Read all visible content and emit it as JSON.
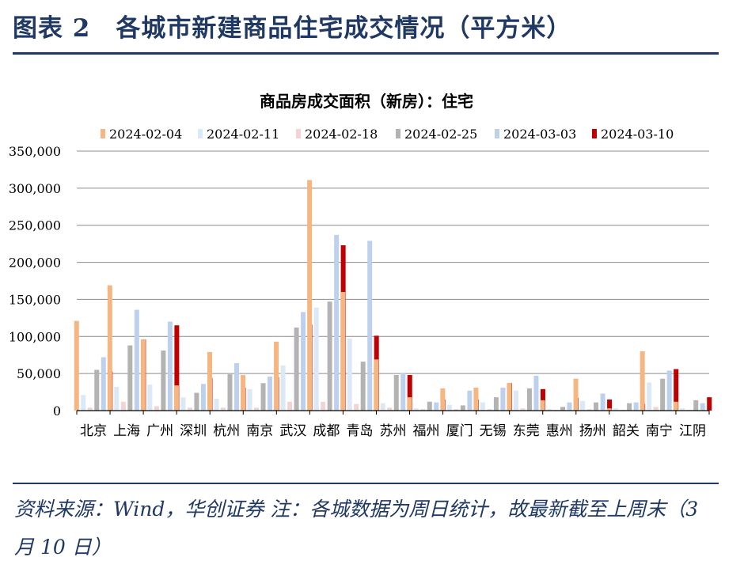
{
  "figure": {
    "title": "图表 2　各城市新建商品住宅成交情况（平方米）",
    "source_note": "资料来源：Wind，华创证券 注：各城数据为周日统计，故最新截至上周末（3 月 10 日）"
  },
  "chart_data": {
    "type": "bar",
    "title": "商品房成交面积（新房）：住宅",
    "xlabel": "",
    "ylabel": "",
    "ylim": [
      0,
      350000
    ],
    "yticks": [
      0,
      50000,
      100000,
      150000,
      200000,
      250000,
      300000,
      350000
    ],
    "ytick_labels": [
      "0",
      "50,000",
      "100,000",
      "150,000",
      "200,000",
      "250,000",
      "300,000",
      "350,000"
    ],
    "grid": true,
    "legend_position": "top",
    "categories": [
      "北京",
      "上海",
      "广州",
      "深圳",
      "杭州",
      "南京",
      "武汉",
      "成都",
      "青岛",
      "苏州",
      "福州",
      "厦门",
      "无锡",
      "东莞",
      "惠州",
      "扬州",
      "韶关",
      "南宁",
      "江阴"
    ],
    "series": [
      {
        "name": "2024-02-04",
        "color": "#f5b682",
        "values": [
          121000,
          169000,
          96000,
          34000,
          79000,
          48000,
          93000,
          311000,
          160000,
          69000,
          18000,
          30000,
          31000,
          37000,
          14000,
          43000,
          3000,
          80000,
          12000
        ]
      },
      {
        "name": "2024-02-11",
        "color": "#dbe8f5",
        "values": [
          21000,
          32000,
          35000,
          18000,
          16000,
          29000,
          61000,
          139000,
          97000,
          10000,
          3000,
          8000,
          11000,
          27000,
          2000,
          13000,
          3000,
          38000,
          3000
        ]
      },
      {
        "name": "2024-02-18",
        "color": "#f2d4d4",
        "values": [
          4000,
          12000,
          6000,
          4000,
          4000,
          4000,
          12000,
          12000,
          9000,
          4000,
          2000,
          2000,
          2000,
          3000,
          1000,
          2000,
          1000,
          5000,
          1000
        ]
      },
      {
        "name": "2024-02-25",
        "color": "#b3b3b3",
        "values": [
          55000,
          88000,
          81000,
          24000,
          49000,
          37000,
          112000,
          147000,
          66000,
          48000,
          12000,
          7000,
          18000,
          30000,
          5000,
          11000,
          10000,
          43000,
          14000
        ]
      },
      {
        "name": "2024-03-03",
        "color": "#bdd1ec",
        "values": [
          72000,
          136000,
          120000,
          36000,
          64000,
          46000,
          133000,
          237000,
          229000,
          51000,
          11000,
          27000,
          31000,
          47000,
          11000,
          23000,
          11000,
          54000,
          10000
        ]
      },
      {
        "name": "2024-03-10",
        "color": "#c00000",
        "values": [
          53000,
          96000,
          115000,
          44000,
          31000,
          45000,
          116000,
          223000,
          101000,
          48000,
          15000,
          15000,
          37000,
          29000,
          17000,
          15000,
          9000,
          56000,
          18000
        ]
      }
    ]
  }
}
